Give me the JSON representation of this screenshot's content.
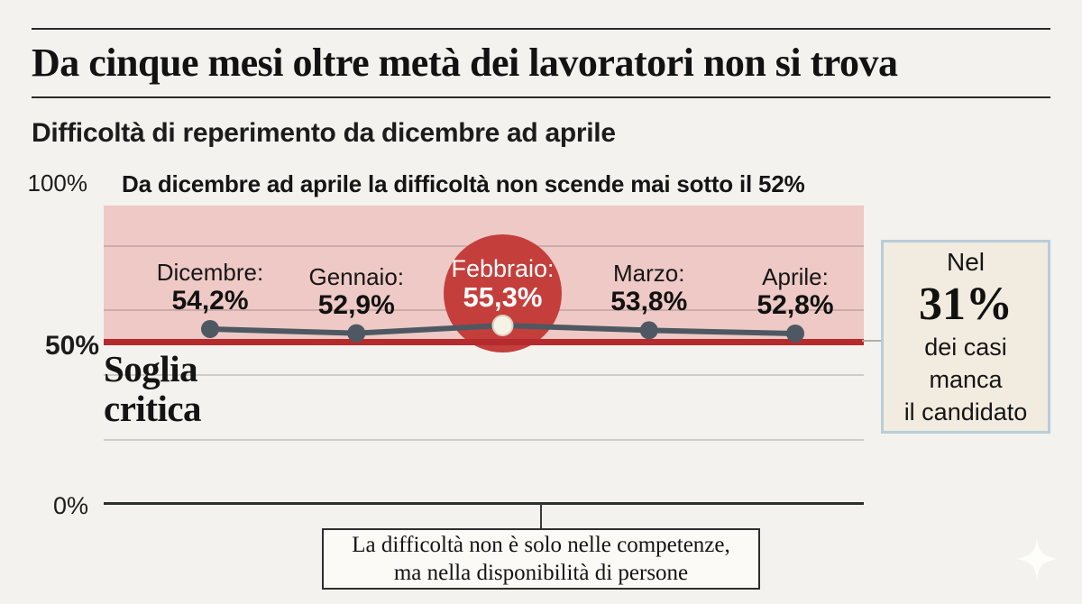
{
  "page": {
    "title": "Da cinque mesi oltre metà dei lavoratori non si trova",
    "subtitle": "Difficoltà di reperimento da dicembre ad aprile"
  },
  "chart_data": {
    "type": "line",
    "title": "Difficoltà di reperimento da dicembre ad aprile",
    "annotation": "Da dicembre ad aprile la difficoltà non scende mai sotto il 52%",
    "categories": [
      "Dicembre",
      "Gennaio",
      "Febbraio",
      "Marzo",
      "Aprile"
    ],
    "values": [
      54.2,
      52.9,
      55.3,
      53.8,
      52.8
    ],
    "point_labels": [
      {
        "name": "Dicembre:",
        "value": "54,2%"
      },
      {
        "name": "Gennaio:",
        "value": "52,9%"
      },
      {
        "name": "Febbraio:",
        "value": "55,3%"
      },
      {
        "name": "Marzo:",
        "value": "53,8%"
      },
      {
        "name": "Aprile:",
        "value": "52,8%"
      }
    ],
    "highlight_index": 2,
    "unit": "%",
    "ylim": [
      0,
      100
    ],
    "yticks": [
      "100%",
      "50%",
      "0%"
    ],
    "gridlines_pct": [
      80,
      60,
      40,
      20
    ],
    "threshold": {
      "value": 50,
      "label": "Soglia\ncritica"
    },
    "legend": "none"
  },
  "callout": {
    "text": "La difficoltà non è solo nelle competenze,\nma nella disponibilità di persone"
  },
  "info_box": {
    "intro": "Nel",
    "value": "31%",
    "lines": [
      "dei casi",
      "manca",
      "il candidato"
    ]
  },
  "colors": {
    "background": "#f3f2ee",
    "band_pink": "#eec9c5",
    "threshold_red": "#b52a2d",
    "highlight_red": "#c43e3c",
    "series_slate": "#4e5862",
    "highlight_dot": "#f7f2e6",
    "info_box_bg": "#f1ecdf",
    "info_box_border": "#b9cdda",
    "text_black": "#161616"
  }
}
